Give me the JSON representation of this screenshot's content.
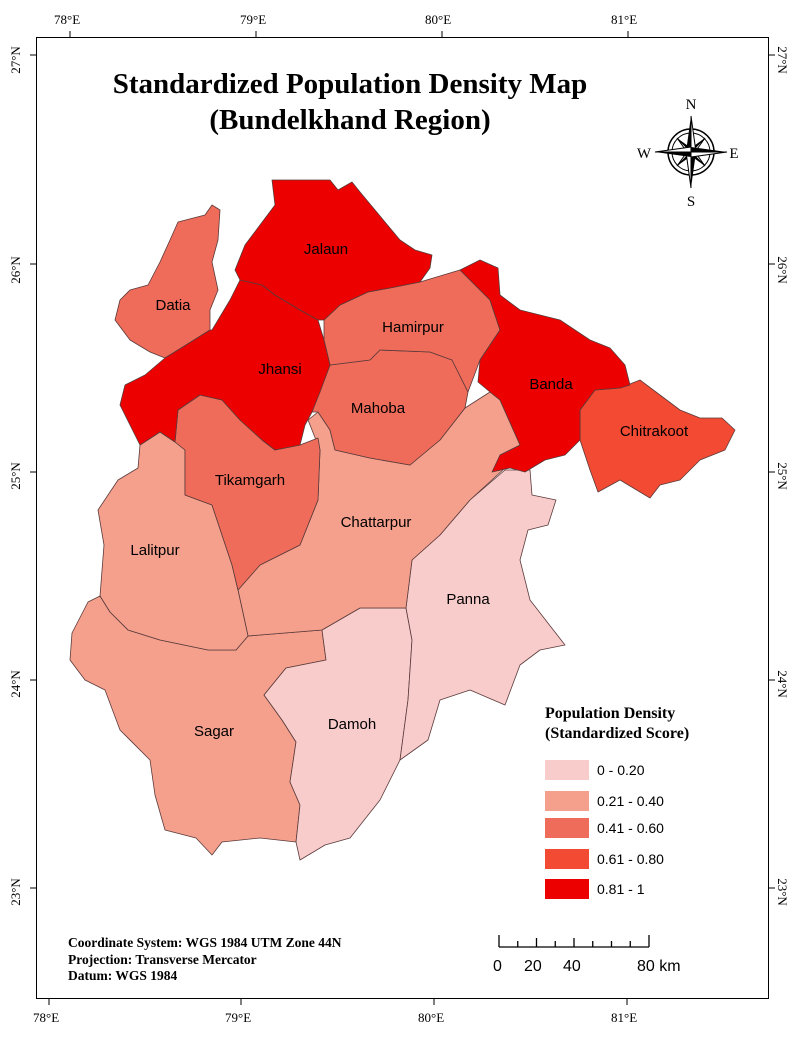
{
  "title_line1": "Standardized Population Density Map",
  "title_line2": "(Bundelkhand Region)",
  "graticule": {
    "lon_labels": [
      "78°E",
      "79°E",
      "80°E",
      "81°E"
    ],
    "lat_labels": [
      "27°N",
      "26°N",
      "25°N",
      "24°N",
      "23°N"
    ]
  },
  "north_arrow": {
    "n": "N",
    "s": "S",
    "e": "E",
    "w": "W"
  },
  "districts": [
    {
      "name": "Jalaun",
      "class": 4
    },
    {
      "name": "Datia",
      "class": 2
    },
    {
      "name": "Jhansi",
      "class": 4
    },
    {
      "name": "Hamirpur",
      "class": 2
    },
    {
      "name": "Mahoba",
      "class": 2
    },
    {
      "name": "Banda",
      "class": 4
    },
    {
      "name": "Chitrakoot",
      "class": 3
    },
    {
      "name": "Tikamgarh",
      "class": 2
    },
    {
      "name": "Chattarpur",
      "class": 1
    },
    {
      "name": "Lalitpur",
      "class": 1
    },
    {
      "name": "Panna",
      "class": 0
    },
    {
      "name": "Sagar",
      "class": 1
    },
    {
      "name": "Damoh",
      "class": 0
    }
  ],
  "legend": {
    "title_line1": "Population Density",
    "title_line2": "(Standardized Score)",
    "classes": [
      {
        "label": "0 - 0.20",
        "color": "#f9cccc"
      },
      {
        "label": "0.21 - 0.40",
        "color": "#f4a08d"
      },
      {
        "label": "0.41 - 0.60",
        "color": "#ef6c5a"
      },
      {
        "label": "0.61 - 0.80",
        "color": "#f24a33"
      },
      {
        "label": "0.81 - 1",
        "color": "#ec0000"
      }
    ]
  },
  "info": {
    "line1": "Coordinate System: WGS 1984 UTM Zone 44N",
    "line2": "Projection: Transverse Mercator",
    "line3": "Datum: WGS 1984"
  },
  "scale_bar": {
    "labels": [
      "0",
      "20",
      "40",
      "80 km"
    ]
  }
}
